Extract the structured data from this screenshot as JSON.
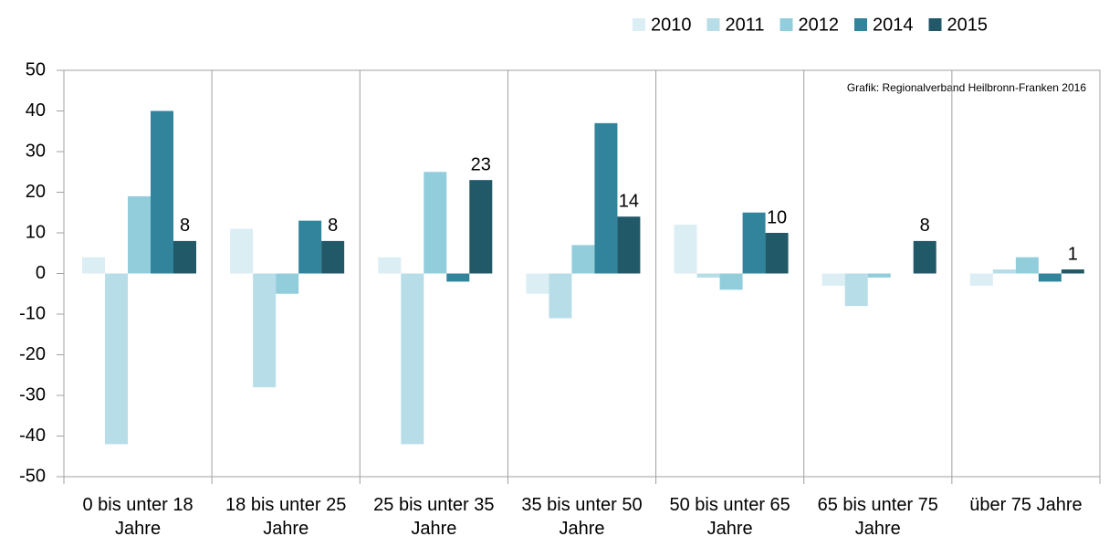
{
  "chart_data": {
    "type": "bar",
    "annotation": "Grafik: Regionalverband Heilbronn-Franken 2016",
    "categories": [
      "0 bis unter 18 Jahre",
      "18 bis unter 25 Jahre",
      "25 bis unter 35 Jahre",
      "35 bis unter 50 Jahre",
      "50 bis unter 65 Jahre",
      "65 bis unter 75 Jahre",
      "über 75 Jahre"
    ],
    "series": [
      {
        "name": "2010",
        "color": "#dbeef4",
        "values": [
          4,
          11,
          4,
          -5,
          12,
          -3,
          -3
        ]
      },
      {
        "name": "2011",
        "color": "#b7dde8",
        "values": [
          -42,
          -28,
          -42,
          -11,
          -1,
          -8,
          1
        ]
      },
      {
        "name": "2012",
        "color": "#92cddc",
        "values": [
          19,
          -5,
          25,
          7,
          -4,
          -1,
          4
        ]
      },
      {
        "name": "2014",
        "color": "#31849b",
        "values": [
          40,
          13,
          -2,
          37,
          15,
          0,
          -2
        ]
      },
      {
        "name": "2015",
        "color": "#215968",
        "values": [
          8,
          8,
          23,
          14,
          10,
          8,
          1
        ],
        "data_labels": true
      }
    ],
    "ylim": [
      -50,
      50
    ],
    "yticks": [
      -50,
      -40,
      -30,
      -20,
      -10,
      0,
      10,
      20,
      30,
      40,
      50
    ],
    "grid": "x",
    "legend": "top-right"
  }
}
